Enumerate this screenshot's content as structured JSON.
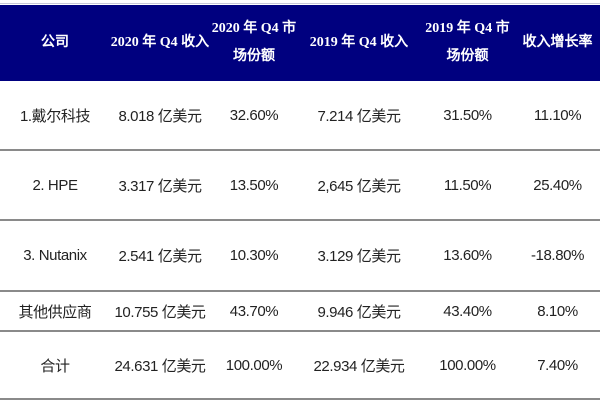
{
  "table": {
    "header_color": "#00007f",
    "headers": [
      "公司",
      "2020 年 Q4 收入",
      "2020 年 Q4 市场份额",
      "2019 年 Q4 收入",
      "2019 年 Q4 市场份额",
      "收入增长率"
    ],
    "rows": [
      [
        "1.戴尔科技",
        "8.018 亿美元",
        "32.60%",
        "7.214 亿美元",
        "31.50%",
        "11.10%"
      ],
      [
        "2. HPE",
        "3.317 亿美元",
        "13.50%",
        "2,645 亿美元",
        "11.50%",
        "25.40%"
      ],
      [
        "3. Nutanix",
        "2.541 亿美元",
        "10.30%",
        "3.129 亿美元",
        "13.60%",
        "-18.80%"
      ],
      [
        "其他供应商",
        "10.755 亿美元",
        "43.70%",
        "9.946 亿美元",
        "43.40%",
        "8.10%"
      ],
      [
        "合计",
        "24.631 亿美元",
        "100.00%",
        "22.934 亿美元",
        "100.00%",
        "7.40%"
      ]
    ]
  }
}
